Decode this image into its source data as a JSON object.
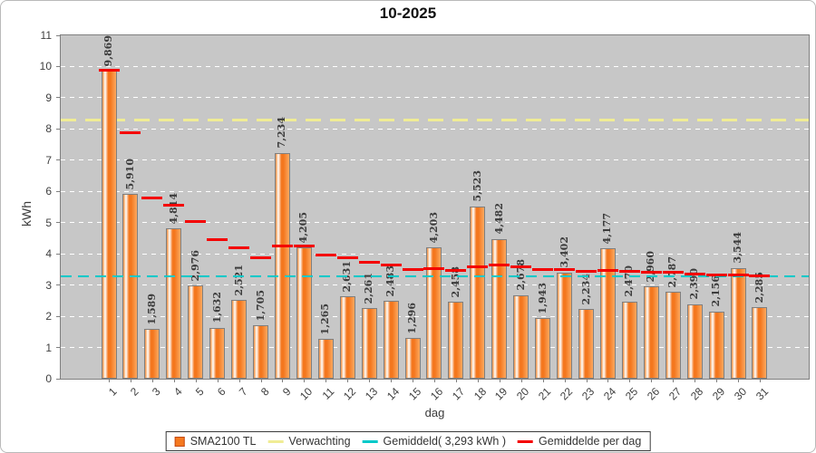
{
  "title": "10-2025",
  "y_axis": {
    "label": "kWh",
    "ticks": [
      "0",
      "1",
      "2",
      "3",
      "4",
      "5",
      "6",
      "7",
      "8",
      "9",
      "10",
      "11"
    ]
  },
  "x_axis": {
    "label": "dag"
  },
  "legend": {
    "series_label": "SMA2100 TL",
    "verwachting_label": "Verwachting",
    "gemiddeld_label": "Gemiddeld( 3,293 kWh )",
    "gemiddelde_per_dag_label": "Gemiddelde per dag"
  },
  "colors": {
    "plot_bg": "#c7c7c7",
    "grid": "#ffffff",
    "bar_border": "#7f7f7f",
    "bar_main": "#f5791f",
    "bar_light": "#fcaa5e",
    "bar_gradient": "linear-gradient(90deg,#ef8c42 0%,#fbd0a8 12%,#ffffff 20%,#f4771e 42%,#f4771e 58%,#fca960 100%)",
    "value_label": "#3c3c3c",
    "verwachting": "#f0ec95",
    "gemiddeld": "#00c9c9",
    "gemiddelde_per_dag": "#f40000",
    "legend_swatch_border": "#c44b16"
  },
  "chart_data": {
    "type": "bar",
    "title": "10-2025",
    "xlabel": "dag",
    "ylabel": "kWh",
    "ylim": [
      0,
      11
    ],
    "grid": true,
    "legend_position": "bottom",
    "categories": [
      "1",
      "2",
      "3",
      "4",
      "5",
      "6",
      "7",
      "8",
      "9",
      "10",
      "11",
      "12",
      "13",
      "14",
      "15",
      "16",
      "17",
      "18",
      "19",
      "20",
      "21",
      "22",
      "23",
      "24",
      "25",
      "26",
      "27",
      "28",
      "29",
      "30",
      "31"
    ],
    "series": [
      {
        "name": "SMA2100 TL",
        "type": "bar",
        "values": [
          9.869,
          5.91,
          1.589,
          4.814,
          2.976,
          1.632,
          2.521,
          1.705,
          7.234,
          4.205,
          1.265,
          2.631,
          2.261,
          2.483,
          1.296,
          4.203,
          2.458,
          5.523,
          4.482,
          2.678,
          1.943,
          3.402,
          2.234,
          4.177,
          2.47,
          2.96,
          2.787,
          2.39,
          2.156,
          3.544,
          2.285
        ],
        "labels": [
          "9,869",
          "5,910",
          "1,589",
          "4,814",
          "2,976",
          "1,632",
          "2,521",
          "1,705",
          "7,234",
          "4,205",
          "1,265",
          "2,631",
          "2,261",
          "2,483",
          "1,296",
          "4,203",
          "2,458",
          "5,523",
          "4,482",
          "2,678",
          "1,943",
          "3,402",
          "2,234",
          "4,177",
          "2,470",
          "2,960",
          "2,787",
          "2,390",
          "2,156",
          "3,544",
          "2,285"
        ]
      },
      {
        "name": "Verwachting",
        "type": "hline",
        "style": "dashed",
        "value": 8.3
      },
      {
        "name": "Gemiddeld",
        "type": "hline",
        "style": "dashed",
        "value": 3.293,
        "display": "3,293 kWh"
      },
      {
        "name": "Gemiddelde per dag",
        "type": "per-category-segments",
        "values": [
          9.869,
          7.89,
          5.789,
          5.546,
          5.032,
          4.465,
          4.187,
          3.877,
          4.25,
          4.246,
          3.975,
          3.863,
          3.739,
          3.65,
          3.493,
          3.537,
          3.474,
          3.588,
          3.634,
          3.587,
          3.509,
          3.504,
          3.448,
          3.479,
          3.438,
          3.42,
          3.397,
          3.361,
          3.319,
          3.327,
          3.293
        ]
      }
    ]
  }
}
